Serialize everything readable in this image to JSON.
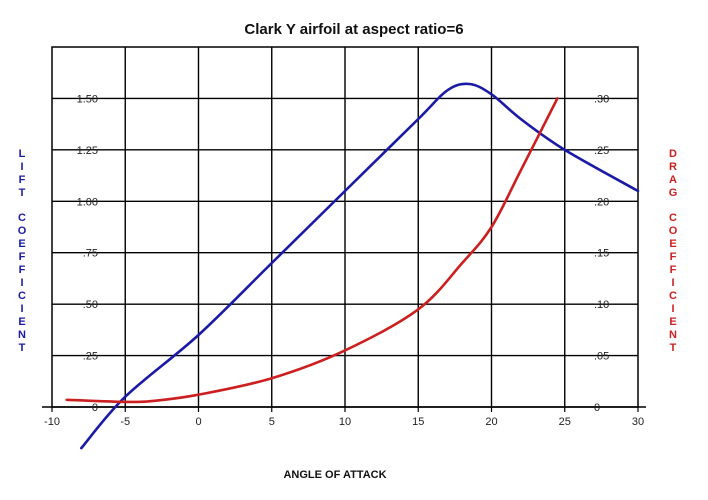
{
  "chart_data": {
    "type": "line",
    "title": "Clark Y airfoil at aspect ratio=6",
    "xlabel": "ANGLE OF ATTACK",
    "ylabel_left": "LIFT COEFFICIENT",
    "ylabel_right": "DRAG COEFFICIENT",
    "xlim": [
      -10,
      30
    ],
    "ylim_left": [
      0,
      1.75
    ],
    "ylim_right": [
      0,
      0.35
    ],
    "x_ticks": [
      "-10",
      "-5",
      "0",
      "5",
      "10",
      "15",
      "20",
      "25",
      "30"
    ],
    "y_left_ticks": [
      "0",
      ".25",
      ".50",
      ".75",
      "1.00",
      "1.25",
      "1.50"
    ],
    "y_right_ticks": [
      "0",
      ".05",
      ".10",
      ".15",
      ".20",
      ".25",
      ".30"
    ],
    "grid": true,
    "colors": {
      "lift": "#1a1aa6",
      "drag": "#cc1f1f",
      "grid": "#000000"
    },
    "series": [
      {
        "name": "LIFT COEFFICIENT",
        "axis": "left",
        "x": [
          -8,
          -5,
          0,
          5,
          10,
          15,
          17,
          18.5,
          20,
          22,
          25,
          30
        ],
        "y": [
          -0.2,
          0.05,
          0.35,
          0.7,
          1.05,
          1.4,
          1.54,
          1.57,
          1.52,
          1.4,
          1.25,
          1.05
        ]
      },
      {
        "name": "DRAG COEFFICIENT",
        "axis": "right",
        "x": [
          -9,
          -5,
          -3,
          0,
          5,
          10,
          15,
          18,
          20,
          22,
          24.5
        ],
        "y": [
          0.007,
          0.005,
          0.006,
          0.012,
          0.028,
          0.055,
          0.095,
          0.14,
          0.175,
          0.23,
          0.3
        ]
      }
    ]
  }
}
